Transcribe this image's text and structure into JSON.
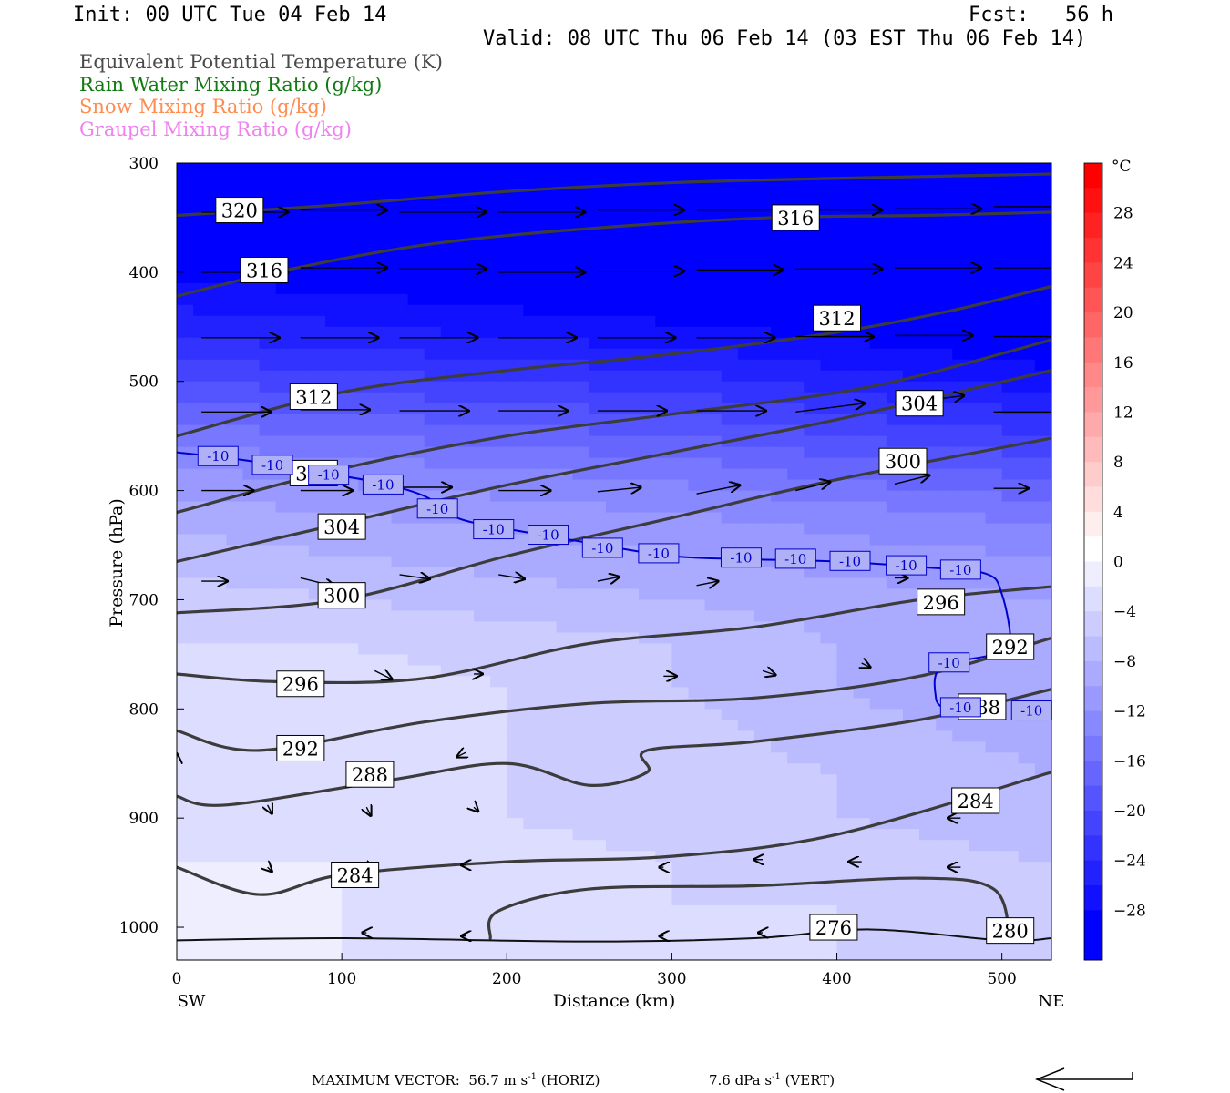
{
  "header": {
    "init": "Init: 00 UTC Tue 04 Feb 14",
    "fcst": "Fcst:   56 h",
    "valid": "Valid: 08 UTC Thu 06 Feb 14 (03 EST Thu 06 Feb 14)"
  },
  "fields": [
    {
      "text": "Equivalent Potential Temperature (K)",
      "color": "#4a4a4a"
    },
    {
      "text": "Rain Water Mixing Ratio (g/kg)",
      "color": "#127a12"
    },
    {
      "text": "Snow Mixing Ratio (g/kg)",
      "color": "#ff8c50"
    },
    {
      "text": "Graupel Mixing Ratio (g/kg)",
      "color": "#ee82ee"
    }
  ],
  "footer": {
    "max_vector": "MAXIMUM VECTOR:  56.7 m s",
    "max_vector_sup": "-1",
    "horiz": " (HORIZ)",
    "vert_val": "7.6 dPa s",
    "vert_sup": "-1",
    "vert": " (VERT)"
  },
  "chart_data": {
    "type": "heatmap",
    "xlabel": "Distance (km)",
    "ylabel": "Pressure (hPa)",
    "x_ticks": [
      0,
      100,
      200,
      300,
      400,
      500
    ],
    "y_ticks": [
      300,
      400,
      500,
      600,
      700,
      800,
      900,
      1000
    ],
    "xlim": [
      0,
      530
    ],
    "ylim": [
      300,
      1030
    ],
    "left_end_label": "SW",
    "right_end_label": "NE",
    "colorbar": {
      "unit": "°C",
      "tick_labels": [
        "28",
        "24",
        "20",
        "16",
        "12",
        "8",
        "4",
        "0",
        "-4",
        "-8",
        "-12",
        "-16",
        "-20",
        "-24",
        "-28"
      ],
      "range": [
        -32,
        32
      ],
      "step": 2,
      "cold_color": "#0000ff",
      "warm_color": "#ff0000"
    },
    "temperature_field": {
      "rows_p": [
        300,
        340,
        380,
        420,
        460,
        500,
        540,
        580,
        620,
        660,
        700,
        740,
        780,
        820,
        860,
        900,
        940,
        980,
        1030
      ],
      "cols_x": [
        0,
        100,
        200,
        300,
        400,
        530
      ],
      "values": [
        [
          -32,
          -32,
          -32,
          -32,
          -32,
          -32
        ],
        [
          -32,
          -32,
          -32,
          -32,
          -32,
          -32
        ],
        [
          -30,
          -31,
          -31,
          -32,
          -32,
          -32
        ],
        [
          -27,
          -28,
          -29,
          -30,
          -31,
          -32
        ],
        [
          -24,
          -25,
          -26,
          -27,
          -28,
          -30
        ],
        [
          -20,
          -21,
          -22,
          -23,
          -25,
          -27
        ],
        [
          -16,
          -17,
          -18,
          -19,
          -21,
          -23
        ],
        [
          -12,
          -13,
          -14,
          -15,
          -17,
          -19
        ],
        [
          -9,
          -10,
          -11,
          -12,
          -13,
          -15
        ],
        [
          -7,
          -8,
          -9,
          -10,
          -11,
          -12
        ],
        [
          -5,
          -6,
          -7,
          -8,
          -9,
          -10
        ],
        [
          -4,
          -4,
          -5,
          -6,
          -8,
          -10
        ],
        [
          -3,
          -3,
          -4,
          -6,
          -8,
          -10
        ],
        [
          -3,
          -3,
          -4,
          -5,
          -7,
          -9
        ],
        [
          -3,
          -3,
          -4,
          -5,
          -6,
          -8
        ],
        [
          -2,
          -3,
          -4,
          -5,
          -6,
          -7
        ],
        [
          -2,
          -2,
          -3,
          -4,
          -5,
          -6
        ],
        [
          -2,
          -2,
          -3,
          -4,
          -4,
          -5
        ],
        [
          -2,
          -2,
          -3,
          -3,
          -4,
          -4
        ]
      ]
    },
    "theta_e_contours": [
      {
        "level": 320,
        "points": [
          [
            0,
            348
          ],
          [
            100,
            338
          ],
          [
            200,
            326
          ],
          [
            300,
            318
          ],
          [
            400,
            314
          ],
          [
            530,
            310
          ]
        ]
      },
      {
        "level": 316,
        "points": [
          [
            0,
            422
          ],
          [
            60,
            400
          ],
          [
            150,
            375
          ],
          [
            250,
            360
          ],
          [
            360,
            350
          ],
          [
            450,
            348
          ],
          [
            530,
            345
          ]
        ]
      },
      {
        "level": 312,
        "points": [
          [
            0,
            550
          ],
          [
            100,
            510
          ],
          [
            200,
            490
          ],
          [
            300,
            475
          ],
          [
            400,
            455
          ],
          [
            470,
            435
          ],
          [
            530,
            413
          ]
        ]
      },
      {
        "level": 308,
        "points": [
          [
            0,
            620
          ],
          [
            100,
            580
          ],
          [
            200,
            550
          ],
          [
            300,
            530
          ],
          [
            420,
            505
          ],
          [
            530,
            462
          ]
        ]
      },
      {
        "level": 304,
        "points": [
          [
            0,
            665
          ],
          [
            100,
            630
          ],
          [
            200,
            595
          ],
          [
            300,
            565
          ],
          [
            400,
            535
          ],
          [
            530,
            490
          ]
        ]
      },
      {
        "level": 300,
        "points": [
          [
            0,
            712
          ],
          [
            100,
            700
          ],
          [
            200,
            660
          ],
          [
            300,
            625
          ],
          [
            400,
            590
          ],
          [
            530,
            552
          ]
        ]
      },
      {
        "level": 296,
        "points": [
          [
            0,
            768
          ],
          [
            60,
            775
          ],
          [
            150,
            772
          ],
          [
            250,
            740
          ],
          [
            350,
            725
          ],
          [
            450,
            700
          ],
          [
            530,
            688
          ]
        ]
      },
      {
        "level": 292,
        "points": [
          [
            0,
            820
          ],
          [
            50,
            838
          ],
          [
            150,
            812
          ],
          [
            250,
            795
          ],
          [
            350,
            790
          ],
          [
            450,
            770
          ],
          [
            530,
            735
          ]
        ]
      },
      {
        "level": 288,
        "points": [
          [
            0,
            880
          ],
          [
            30,
            888
          ],
          [
            130,
            865
          ],
          [
            200,
            850
          ],
          [
            250,
            870
          ],
          [
            285,
            858
          ],
          [
            285,
            838
          ],
          [
            350,
            830
          ],
          [
            450,
            810
          ],
          [
            530,
            782
          ]
        ]
      },
      {
        "level": 284,
        "points": [
          [
            0,
            945
          ],
          [
            50,
            970
          ],
          [
            100,
            952
          ],
          [
            200,
            940
          ],
          [
            300,
            935
          ],
          [
            400,
            915
          ],
          [
            530,
            858
          ]
        ]
      },
      {
        "level": 280,
        "points": [
          [
            190,
            1010
          ],
          [
            195,
            985
          ],
          [
            250,
            965
          ],
          [
            350,
            962
          ],
          [
            450,
            955
          ],
          [
            495,
            965
          ],
          [
            505,
            1010
          ]
        ]
      },
      {
        "level": 276,
        "points": [
          [
            0,
            1012
          ],
          [
            100,
            1010
          ],
          [
            250,
            1013
          ],
          [
            350,
            1010
          ],
          [
            420,
            1002
          ],
          [
            500,
            1012
          ],
          [
            530,
            1010
          ]
        ]
      }
    ],
    "contour_labels": [
      {
        "text": "320",
        "x": 38,
        "p": 343
      },
      {
        "text": "316",
        "x": 53,
        "p": 398
      },
      {
        "text": "316",
        "x": 375,
        "p": 350
      },
      {
        "text": "312",
        "x": 83,
        "p": 514
      },
      {
        "text": "312",
        "x": 400,
        "p": 442
      },
      {
        "text": "308",
        "x": 83,
        "p": 584
      },
      {
        "text": "304",
        "x": 100,
        "p": 633
      },
      {
        "text": "304",
        "x": 450,
        "p": 520
      },
      {
        "text": "300",
        "x": 100,
        "p": 696
      },
      {
        "text": "300",
        "x": 440,
        "p": 573
      },
      {
        "text": "296",
        "x": 75,
        "p": 777
      },
      {
        "text": "296",
        "x": 463,
        "p": 702
      },
      {
        "text": "292",
        "x": 75,
        "p": 836
      },
      {
        "text": "292",
        "x": 505,
        "p": 743
      },
      {
        "text": "288",
        "x": 117,
        "p": 860
      },
      {
        "text": "288",
        "x": 488,
        "p": 798
      },
      {
        "text": "284",
        "x": 108,
        "p": 952
      },
      {
        "text": "284",
        "x": 484,
        "p": 884
      },
      {
        "text": "276",
        "x": 398,
        "p": 1000
      },
      {
        "text": "280",
        "x": 505,
        "p": 1003
      }
    ],
    "isotherm": {
      "level": -10,
      "color": "#0000cc",
      "main": [
        [
          0,
          565
        ],
        [
          40,
          572
        ],
        [
          80,
          582
        ],
        [
          120,
          592
        ],
        [
          150,
          605
        ],
        [
          170,
          625
        ],
        [
          200,
          635
        ],
        [
          250,
          648
        ],
        [
          300,
          660
        ],
        [
          350,
          663
        ],
        [
          400,
          665
        ],
        [
          450,
          670
        ],
        [
          490,
          676
        ],
        [
          500,
          695
        ],
        [
          505,
          740
        ],
        [
          495,
          750
        ],
        [
          463,
          762
        ],
        [
          460,
          790
        ],
        [
          465,
          800
        ]
      ],
      "labels": [
        {
          "x": 25,
          "p": 568
        },
        {
          "x": 58,
          "p": 576
        },
        {
          "x": 92,
          "p": 585
        },
        {
          "x": 125,
          "p": 594
        },
        {
          "x": 158,
          "p": 616
        },
        {
          "x": 192,
          "p": 635
        },
        {
          "x": 225,
          "p": 640
        },
        {
          "x": 258,
          "p": 652
        },
        {
          "x": 292,
          "p": 657
        },
        {
          "x": 342,
          "p": 661
        },
        {
          "x": 375,
          "p": 662
        },
        {
          "x": 408,
          "p": 664
        },
        {
          "x": 442,
          "p": 668
        },
        {
          "x": 475,
          "p": 672
        },
        {
          "x": 468,
          "p": 757
        },
        {
          "x": 475,
          "p": 798
        },
        {
          "x": 518,
          "p": 801
        }
      ],
      "label_text": "-10"
    },
    "wind_vectors": [
      {
        "x": 15,
        "p": 345,
        "u": 1.0,
        "w": 0
      },
      {
        "x": 75,
        "p": 343,
        "u": 1.0,
        "w": 0
      },
      {
        "x": 135,
        "p": 345,
        "u": 1.0,
        "w": 0
      },
      {
        "x": 195,
        "p": 345,
        "u": 1.0,
        "w": 0
      },
      {
        "x": 255,
        "p": 343,
        "u": 1.0,
        "w": 0
      },
      {
        "x": 315,
        "p": 343,
        "u": 1.0,
        "w": 0
      },
      {
        "x": 375,
        "p": 343,
        "u": 1.0,
        "w": 0
      },
      {
        "x": 435,
        "p": 342,
        "u": 1.0,
        "w": 0
      },
      {
        "x": 495,
        "p": 340,
        "u": 1.0,
        "w": 0
      },
      {
        "x": 15,
        "p": 400,
        "u": 1.0,
        "w": 0
      },
      {
        "x": 75,
        "p": 396,
        "u": 1.0,
        "w": 0
      },
      {
        "x": 135,
        "p": 397,
        "u": 1.0,
        "w": 0
      },
      {
        "x": 195,
        "p": 400,
        "u": 1.0,
        "w": 0
      },
      {
        "x": 255,
        "p": 399,
        "u": 1.0,
        "w": 0
      },
      {
        "x": 315,
        "p": 398,
        "u": 1.0,
        "w": 0
      },
      {
        "x": 375,
        "p": 397,
        "u": 1.0,
        "w": 0
      },
      {
        "x": 435,
        "p": 396,
        "u": 1.0,
        "w": 0
      },
      {
        "x": 495,
        "p": 396,
        "u": 1.0,
        "w": 0
      },
      {
        "x": 15,
        "p": 460,
        "u": 0.9,
        "w": 0
      },
      {
        "x": 75,
        "p": 460,
        "u": 0.9,
        "w": 0
      },
      {
        "x": 135,
        "p": 460,
        "u": 0.9,
        "w": 0
      },
      {
        "x": 195,
        "p": 460,
        "u": 0.9,
        "w": 0
      },
      {
        "x": 255,
        "p": 460,
        "u": 0.9,
        "w": 0
      },
      {
        "x": 315,
        "p": 460,
        "u": 0.9,
        "w": 0
      },
      {
        "x": 375,
        "p": 459,
        "u": 0.9,
        "w": 0
      },
      {
        "x": 435,
        "p": 458,
        "u": 0.9,
        "w": 0
      },
      {
        "x": 495,
        "p": 459,
        "u": 0.9,
        "w": 0
      },
      {
        "x": 15,
        "p": 528,
        "u": 0.8,
        "w": 0
      },
      {
        "x": 75,
        "p": 526,
        "u": 0.8,
        "w": 0
      },
      {
        "x": 135,
        "p": 527,
        "u": 0.8,
        "w": 0
      },
      {
        "x": 195,
        "p": 527,
        "u": 0.8,
        "w": 0
      },
      {
        "x": 255,
        "p": 527,
        "u": 0.8,
        "w": 0
      },
      {
        "x": 315,
        "p": 527,
        "u": 0.8,
        "w": 0
      },
      {
        "x": 375,
        "p": 528,
        "u": 0.8,
        "w": 0.1
      },
      {
        "x": 435,
        "p": 521,
        "u": 0.8,
        "w": 0.1
      },
      {
        "x": 495,
        "p": 528,
        "u": 0.8,
        "w": 0
      },
      {
        "x": 15,
        "p": 600,
        "u": 0.6,
        "w": 0
      },
      {
        "x": 75,
        "p": 600,
        "u": 0.6,
        "w": 0
      },
      {
        "x": 135,
        "p": 597,
        "u": 0.6,
        "w": 0
      },
      {
        "x": 195,
        "p": 600,
        "u": 0.6,
        "w": 0
      },
      {
        "x": 255,
        "p": 601,
        "u": 0.5,
        "w": 0.05
      },
      {
        "x": 315,
        "p": 603,
        "u": 0.5,
        "w": 0.1
      },
      {
        "x": 375,
        "p": 600,
        "u": 0.4,
        "w": 0.1
      },
      {
        "x": 435,
        "p": 594,
        "u": 0.4,
        "w": 0.1
      },
      {
        "x": 495,
        "p": 598,
        "u": 0.4,
        "w": 0
      },
      {
        "x": 15,
        "p": 683,
        "u": 0.3,
        "w": 0
      },
      {
        "x": 75,
        "p": 680,
        "u": 0.4,
        "w": -0.1
      },
      {
        "x": 135,
        "p": 677,
        "u": 0.35,
        "w": -0.05
      },
      {
        "x": 195,
        "p": 677,
        "u": 0.3,
        "w": -0.05
      },
      {
        "x": 255,
        "p": 683,
        "u": 0.25,
        "w": 0.05
      },
      {
        "x": 315,
        "p": 687,
        "u": 0.25,
        "w": 0.05
      },
      {
        "x": 435,
        "p": 680,
        "u": 0.15,
        "w": 0
      },
      {
        "x": 120,
        "p": 765,
        "u": 0.2,
        "w": -0.1
      },
      {
        "x": 180,
        "p": 768,
        "u": 0.1,
        "w": 0
      },
      {
        "x": 295,
        "p": 770,
        "u": 0.15,
        "w": 0
      },
      {
        "x": 355,
        "p": 765,
        "u": 0.15,
        "w": -0.05
      },
      {
        "x": 415,
        "p": 758,
        "u": 0.1,
        "w": -0.05
      },
      {
        "x": 175,
        "p": 840,
        "u": -0.1,
        "w": -0.05
      },
      {
        "x": 0,
        "p": 845,
        "u": 0,
        "w": 0.05
      },
      {
        "x": 55,
        "p": 888,
        "u": 0.05,
        "w": -0.1
      },
      {
        "x": 115,
        "p": 890,
        "u": 0.05,
        "w": -0.1
      },
      {
        "x": 180,
        "p": 890,
        "u": 0.05,
        "w": -0.05
      },
      {
        "x": 475,
        "p": 900,
        "u": -0.15,
        "w": 0
      },
      {
        "x": 55,
        "p": 945,
        "u": 0.05,
        "w": -0.05
      },
      {
        "x": 115,
        "p": 945,
        "u": 0.05,
        "w": -0.05
      },
      {
        "x": 175,
        "p": 943,
        "u": -0.05,
        "w": 0
      },
      {
        "x": 295,
        "p": 945,
        "u": -0.05,
        "w": 0
      },
      {
        "x": 355,
        "p": 938,
        "u": -0.1,
        "w": 0
      },
      {
        "x": 415,
        "p": 940,
        "u": -0.15,
        "w": 0
      },
      {
        "x": 475,
        "p": 945,
        "u": -0.15,
        "w": 0
      },
      {
        "x": 115,
        "p": 1005,
        "u": -0.05,
        "w": 0
      },
      {
        "x": 175,
        "p": 1008,
        "u": -0.05,
        "w": 0
      },
      {
        "x": 295,
        "p": 1008,
        "u": -0.05,
        "w": 0
      },
      {
        "x": 355,
        "p": 1005,
        "u": -0.05,
        "w": 0
      }
    ],
    "max_vector_arrow": "left"
  }
}
